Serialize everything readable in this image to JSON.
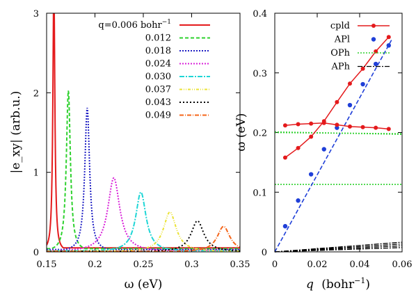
{
  "chart_data": [
    {
      "type": "line",
      "xlabel": "ω (eV)",
      "ylabel": "|e_xy| (arb.u.)",
      "xlim": [
        0.15,
        0.35
      ],
      "ylim": [
        0,
        3
      ],
      "xticks": [
        "0.15",
        "0.2",
        "0.25",
        "0.3",
        "0.35"
      ],
      "yticks": [
        "0",
        "1",
        "2",
        "3"
      ],
      "legend_position": "top-right",
      "series": [
        {
          "name": "q=0.006 bohr⁻¹",
          "label_prefix": "q=0.006 bohr",
          "label_sup": "−1",
          "color": "#e41a1c",
          "dash": "",
          "peak_x": 0.1575,
          "peak_y": 3.4,
          "width": 0.0012,
          "base": 0.05
        },
        {
          "name": "0.012",
          "color": "#2ed12e",
          "dash": "5,3",
          "peak_x": 0.1725,
          "peak_y": 2.03,
          "width": 0.0025,
          "base": 0.04
        },
        {
          "name": "0.018",
          "color": "#1f1fc4",
          "dash": "2,2",
          "peak_x": 0.192,
          "peak_y": 1.81,
          "width": 0.003,
          "base": 0.03
        },
        {
          "name": "0.024",
          "color": "#d81fd8",
          "dash": "2,2",
          "peak_x": 0.2195,
          "peak_y": 0.93,
          "width": 0.0075,
          "base": 0.02
        },
        {
          "name": "0.030",
          "color": "#1fd6d6",
          "dash": "7,2,2,2",
          "peak_x": 0.2475,
          "peak_y": 0.75,
          "width": 0.0065,
          "base": 0.015
        },
        {
          "name": "0.037",
          "color": "#ebe336",
          "dash": "4,2,1,2,1,2",
          "peak_x": 0.2775,
          "peak_y": 0.5,
          "width": 0.008,
          "base": 0.01
        },
        {
          "name": "0.043",
          "color": "#000000",
          "dash": "2,3",
          "peak_x": 0.306,
          "peak_y": 0.39,
          "width": 0.008,
          "base": 0.008
        },
        {
          "name": "0.049",
          "color": "#f5651a",
          "dash": "6,2,1,2",
          "peak_x": 0.333,
          "peak_y": 0.32,
          "width": 0.008,
          "base": 0.005
        }
      ]
    },
    {
      "type": "scatter",
      "xlabel": "q (bohr⁻¹)",
      "xlabel_main": "q",
      "xlabel_unit": "(bohr",
      "xlabel_sup": "−1",
      "xlabel_close": ")",
      "ylabel": "ω (eV)",
      "xlim": [
        0,
        0.06
      ],
      "ylim": [
        0,
        0.4
      ],
      "xticks": [
        "0",
        "0.02",
        "0.04",
        "0.06"
      ],
      "yticks": [
        "0",
        "0.1",
        "0.2",
        "0.3",
        "0.4"
      ],
      "legend_position": "top-right",
      "series": [
        {
          "name": "cpld",
          "color": "#e41a1c",
          "style": "line-points",
          "branches": [
            {
              "x": [
                0.0049,
                0.011,
                0.0171,
                0.0232,
                0.0293,
                0.0354,
                0.0415,
                0.0476,
                0.0537
              ],
              "y": [
                0.158,
                0.174,
                0.193,
                0.219,
                0.251,
                0.282,
                0.307,
                0.336,
                0.36
              ]
            },
            {
              "x": [
                0.0049,
                0.011,
                0.0171,
                0.0232,
                0.0293,
                0.0354,
                0.0415,
                0.0476,
                0.0537
              ],
              "y": [
                0.212,
                0.214,
                0.215,
                0.216,
                0.213,
                0.21,
                0.209,
                0.208,
                0.206
              ]
            }
          ]
        },
        {
          "name": "APl",
          "color": "#1f3fd8",
          "style": "points",
          "x": [
            0.0049,
            0.011,
            0.0171,
            0.0232,
            0.0293,
            0.0354,
            0.0415,
            0.0476,
            0.0537
          ],
          "y": [
            0.043,
            0.086,
            0.13,
            0.172,
            0.208,
            0.246,
            0.281,
            0.315,
            0.346
          ]
        },
        {
          "name": "APl fit",
          "color": "#1f3fd8",
          "style": "dashed-line",
          "x": [
            0.0,
            0.055
          ],
          "y": [
            0.0,
            0.355
          ]
        },
        {
          "name": "OPh",
          "color": "#2ed12e",
          "style": "dotted-hlines",
          "levels": [
            [
              0.201,
              0.197
            ],
            [
              0.2,
              0.198
            ],
            [
              0.113,
              0.113
            ]
          ]
        },
        {
          "name": "APh",
          "color": "#000000",
          "style": "dash-dot-rays",
          "slopes": [
            0.27,
            0.22,
            0.17,
            0.12
          ]
        }
      ]
    }
  ]
}
